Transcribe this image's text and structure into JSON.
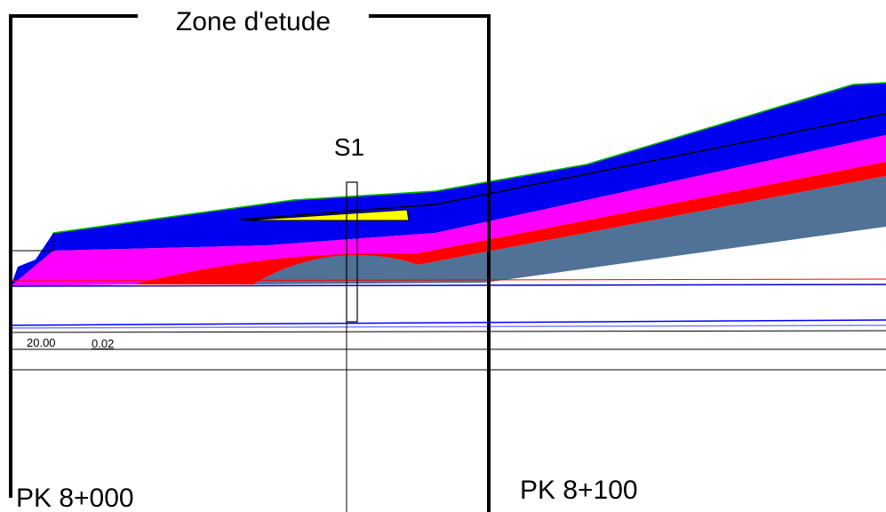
{
  "zone": {
    "label": "Zone d'etude"
  },
  "borehole": {
    "label": "S1"
  },
  "profile": {
    "distance": "20.00",
    "slope": "0.02"
  },
  "stations": [
    "PK 8+000",
    "PK 8+100"
  ]
}
